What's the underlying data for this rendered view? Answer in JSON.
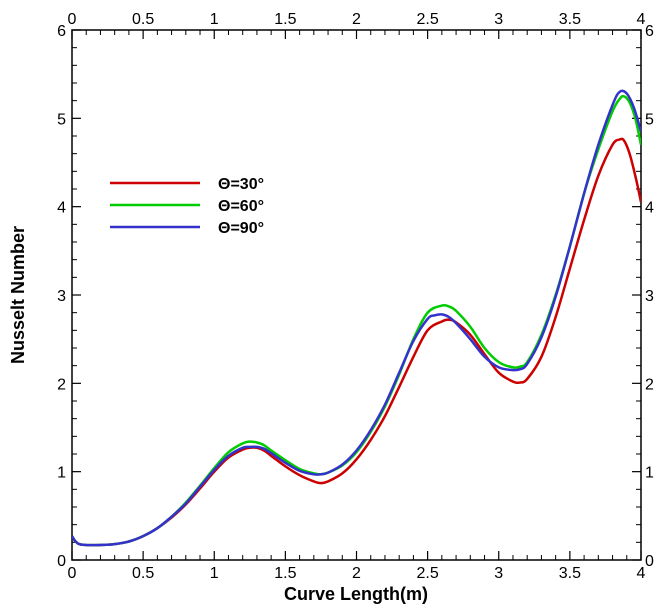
{
  "chart_data": {
    "type": "line",
    "title": "",
    "xlabel": "Curve Length(m)",
    "ylabel": "Nusselt Number",
    "xlim": [
      0,
      4
    ],
    "ylim": [
      0,
      6
    ],
    "x_ticks": [
      "0",
      "0.5",
      "1",
      "1.5",
      "2",
      "2.5",
      "3",
      "3.5",
      "4"
    ],
    "y_ticks": [
      "0",
      "1",
      "2",
      "3",
      "4",
      "5",
      "6"
    ],
    "grid": false,
    "legend_position": "upper-left",
    "series": [
      {
        "name": "Θ=30°",
        "color": "#cc0000",
        "x": [
          0,
          0.02,
          0.05,
          0.1,
          0.2,
          0.3,
          0.4,
          0.5,
          0.6,
          0.7,
          0.8,
          0.9,
          1.0,
          1.1,
          1.2,
          1.25,
          1.3,
          1.35,
          1.4,
          1.5,
          1.6,
          1.7,
          1.75,
          1.8,
          1.9,
          2.0,
          2.1,
          2.2,
          2.3,
          2.4,
          2.5,
          2.6,
          2.65,
          2.7,
          2.8,
          2.9,
          3.0,
          3.1,
          3.15,
          3.2,
          3.3,
          3.4,
          3.5,
          3.6,
          3.7,
          3.8,
          3.85,
          3.88,
          3.92,
          3.96,
          4.0
        ],
        "y": [
          0.27,
          0.22,
          0.18,
          0.17,
          0.17,
          0.18,
          0.21,
          0.27,
          0.36,
          0.48,
          0.63,
          0.81,
          1.0,
          1.16,
          1.25,
          1.27,
          1.27,
          1.24,
          1.18,
          1.06,
          0.96,
          0.89,
          0.87,
          0.89,
          0.98,
          1.14,
          1.36,
          1.63,
          1.96,
          2.3,
          2.6,
          2.7,
          2.72,
          2.69,
          2.55,
          2.33,
          2.12,
          2.02,
          2.01,
          2.05,
          2.3,
          2.75,
          3.3,
          3.85,
          4.35,
          4.7,
          4.76,
          4.75,
          4.6,
          4.35,
          4.05
        ]
      },
      {
        "name": "Θ=60°",
        "color": "#00cc00",
        "x": [
          0,
          0.02,
          0.05,
          0.1,
          0.2,
          0.3,
          0.4,
          0.5,
          0.6,
          0.7,
          0.8,
          0.9,
          1.0,
          1.1,
          1.2,
          1.25,
          1.3,
          1.35,
          1.4,
          1.5,
          1.6,
          1.7,
          1.75,
          1.8,
          1.9,
          2.0,
          2.1,
          2.2,
          2.3,
          2.4,
          2.5,
          2.6,
          2.65,
          2.7,
          2.8,
          2.9,
          3.0,
          3.1,
          3.15,
          3.2,
          3.3,
          3.4,
          3.5,
          3.6,
          3.7,
          3.8,
          3.85,
          3.88,
          3.92,
          3.96,
          4.0
        ],
        "y": [
          0.27,
          0.22,
          0.18,
          0.17,
          0.17,
          0.18,
          0.21,
          0.27,
          0.36,
          0.49,
          0.65,
          0.84,
          1.04,
          1.22,
          1.32,
          1.34,
          1.33,
          1.3,
          1.24,
          1.13,
          1.03,
          0.98,
          0.97,
          0.99,
          1.07,
          1.22,
          1.45,
          1.74,
          2.1,
          2.5,
          2.8,
          2.88,
          2.87,
          2.82,
          2.64,
          2.4,
          2.24,
          2.18,
          2.19,
          2.24,
          2.55,
          3.0,
          3.55,
          4.15,
          4.65,
          5.08,
          5.22,
          5.25,
          5.18,
          5.0,
          4.7
        ]
      },
      {
        "name": "Θ=90°",
        "color": "#3333cc",
        "x": [
          0,
          0.02,
          0.05,
          0.1,
          0.2,
          0.3,
          0.4,
          0.5,
          0.6,
          0.7,
          0.8,
          0.9,
          1.0,
          1.1,
          1.2,
          1.25,
          1.3,
          1.35,
          1.4,
          1.5,
          1.6,
          1.7,
          1.75,
          1.8,
          1.9,
          2.0,
          2.1,
          2.2,
          2.3,
          2.4,
          2.5,
          2.55,
          2.6,
          2.65,
          2.7,
          2.8,
          2.9,
          3.0,
          3.1,
          3.15,
          3.2,
          3.3,
          3.4,
          3.5,
          3.6,
          3.7,
          3.8,
          3.85,
          3.9,
          3.95,
          4.0
        ],
        "y": [
          0.27,
          0.22,
          0.18,
          0.17,
          0.17,
          0.18,
          0.21,
          0.27,
          0.36,
          0.49,
          0.64,
          0.83,
          1.02,
          1.18,
          1.27,
          1.28,
          1.28,
          1.26,
          1.21,
          1.1,
          1.01,
          0.97,
          0.97,
          0.99,
          1.08,
          1.24,
          1.47,
          1.76,
          2.12,
          2.48,
          2.73,
          2.77,
          2.78,
          2.75,
          2.68,
          2.5,
          2.3,
          2.18,
          2.15,
          2.16,
          2.22,
          2.52,
          2.98,
          3.55,
          4.15,
          4.7,
          5.15,
          5.3,
          5.28,
          5.12,
          4.85
        ]
      }
    ]
  }
}
